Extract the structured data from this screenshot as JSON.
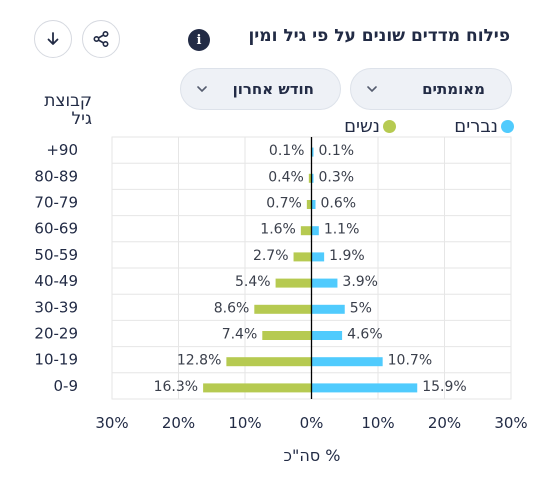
{
  "header": {
    "title": "פילוח מדדים שונים על פי גיל ומין",
    "info_icon": "info-icon",
    "download_icon": "download-icon",
    "share_icon": "share-icon"
  },
  "filters": {
    "metric": "מאומתים",
    "period": "חודש אחרון"
  },
  "legend": {
    "men": "נברים",
    "women": "נשים"
  },
  "colors": {
    "men": "#50cbfd",
    "women": "#b6ca51",
    "axis": "#000000",
    "grid": "#e6e6e6"
  },
  "chart_data": {
    "type": "bar",
    "orientation": "horizontal-diverging",
    "y_axis_title": "קבוצת גיל",
    "x_axis_title": "% סה\"כ",
    "x_ticks": [
      "30%",
      "20%",
      "10%",
      "0%",
      "10%",
      "20%",
      "30%"
    ],
    "xlim": [
      -30,
      30
    ],
    "categories": [
      "+90",
      "80-89",
      "70-79",
      "60-69",
      "50-59",
      "40-49",
      "30-39",
      "20-29",
      "10-19",
      "0-9"
    ],
    "series": [
      {
        "name": "נשים",
        "side": "left",
        "values": [
          0.1,
          0.4,
          0.7,
          1.6,
          2.7,
          5.4,
          8.6,
          7.4,
          12.8,
          16.3
        ],
        "labels": [
          "0.1%",
          "0.4%",
          "0.7%",
          "1.6%",
          "2.7%",
          "5.4%",
          "8.6%",
          "7.4%",
          "12.8%",
          "16.3%"
        ]
      },
      {
        "name": "נברים",
        "side": "right",
        "values": [
          0.1,
          0.3,
          0.6,
          1.1,
          1.9,
          3.9,
          5.0,
          4.6,
          10.7,
          15.9
        ],
        "labels": [
          "0.1%",
          "0.3%",
          "0.6%",
          "1.1%",
          "1.9%",
          "3.9%",
          "5%",
          "4.6%",
          "10.7%",
          "15.9%"
        ]
      }
    ],
    "grid": true
  }
}
